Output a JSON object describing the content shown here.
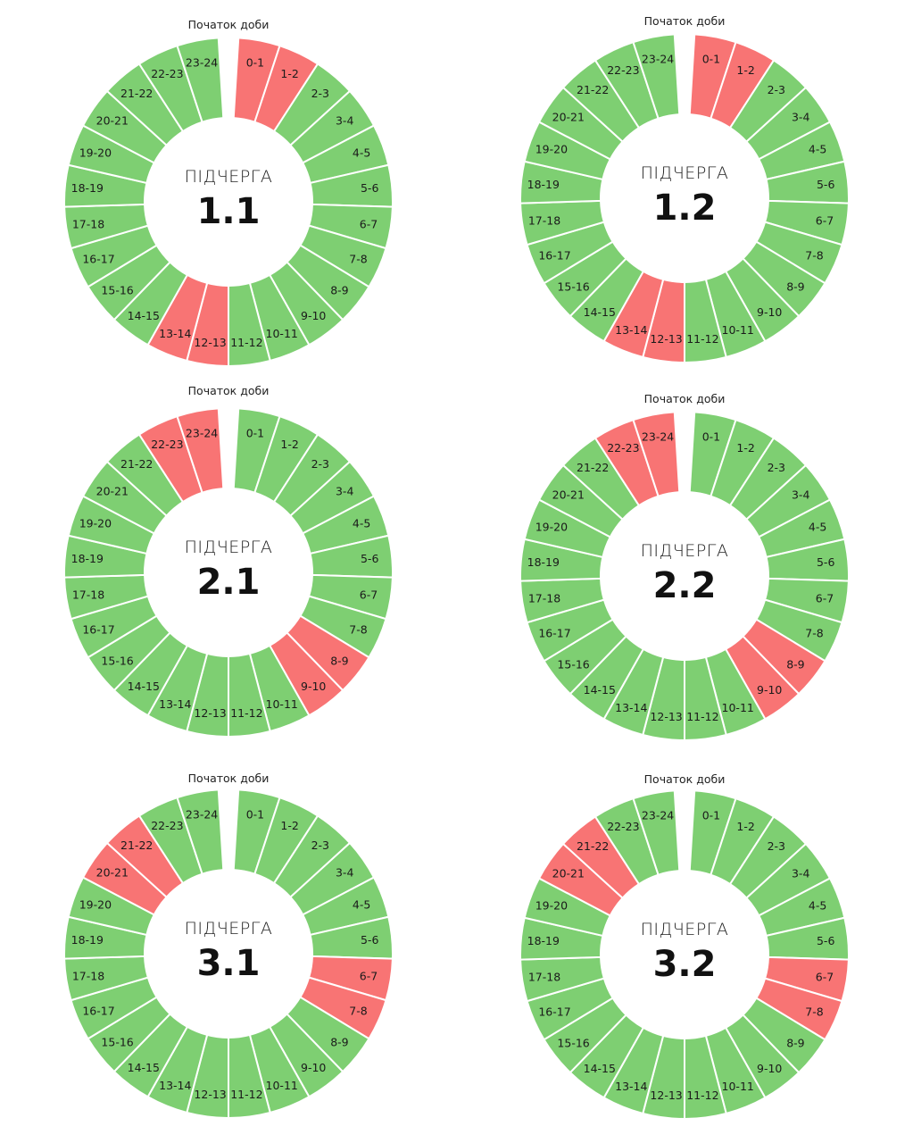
{
  "colors": {
    "on": "#7ecf72",
    "off": "#f87474",
    "divider": "#ffffff"
  },
  "chart_data": [
    {
      "type": "pie",
      "caption": "Початок доби",
      "center_title": "ПІДЧЕРГА",
      "center_number": "1.1",
      "categories": [
        "0-1",
        "1-2",
        "2-3",
        "3-4",
        "4-5",
        "5-6",
        "6-7",
        "7-8",
        "8-9",
        "9-10",
        "10-11",
        "11-12",
        "12-13",
        "13-14",
        "14-15",
        "15-16",
        "16-17",
        "17-18",
        "18-19",
        "19-20",
        "20-21",
        "21-22",
        "22-23",
        "23-24"
      ],
      "off": [
        "0-1",
        "1-2",
        "12-13",
        "13-14"
      ]
    },
    {
      "type": "pie",
      "caption": "Початок доби",
      "center_title": "ПІДЧЕРГА",
      "center_number": "1.2",
      "categories": [
        "0-1",
        "1-2",
        "2-3",
        "3-4",
        "4-5",
        "5-6",
        "6-7",
        "7-8",
        "8-9",
        "9-10",
        "10-11",
        "11-12",
        "12-13",
        "13-14",
        "14-15",
        "15-16",
        "16-17",
        "17-18",
        "18-19",
        "19-20",
        "20-21",
        "21-22",
        "22-23",
        "23-24"
      ],
      "off": [
        "0-1",
        "1-2",
        "12-13",
        "13-14"
      ]
    },
    {
      "type": "pie",
      "caption": "Початок доби",
      "center_title": "ПІДЧЕРГА",
      "center_number": "2.1",
      "categories": [
        "0-1",
        "1-2",
        "2-3",
        "3-4",
        "4-5",
        "5-6",
        "6-7",
        "7-8",
        "8-9",
        "9-10",
        "10-11",
        "11-12",
        "12-13",
        "13-14",
        "14-15",
        "15-16",
        "16-17",
        "17-18",
        "18-19",
        "19-20",
        "20-21",
        "21-22",
        "22-23",
        "23-24"
      ],
      "off": [
        "8-9",
        "9-10",
        "22-23",
        "23-24"
      ]
    },
    {
      "type": "pie",
      "caption": "Початок доби",
      "center_title": "ПІДЧЕРГА",
      "center_number": "2.2",
      "categories": [
        "0-1",
        "1-2",
        "2-3",
        "3-4",
        "4-5",
        "5-6",
        "6-7",
        "7-8",
        "8-9",
        "9-10",
        "10-11",
        "11-12",
        "12-13",
        "13-14",
        "14-15",
        "15-16",
        "16-17",
        "17-18",
        "18-19",
        "19-20",
        "20-21",
        "21-22",
        "22-23",
        "23-24"
      ],
      "off": [
        "8-9",
        "9-10",
        "22-23",
        "23-24"
      ]
    },
    {
      "type": "pie",
      "caption": "Початок доби",
      "center_title": "ПІДЧЕРГА",
      "center_number": "3.1",
      "categories": [
        "0-1",
        "1-2",
        "2-3",
        "3-4",
        "4-5",
        "5-6",
        "6-7",
        "7-8",
        "8-9",
        "9-10",
        "10-11",
        "11-12",
        "12-13",
        "13-14",
        "14-15",
        "15-16",
        "16-17",
        "17-18",
        "18-19",
        "19-20",
        "20-21",
        "21-22",
        "22-23",
        "23-24"
      ],
      "off": [
        "6-7",
        "7-8",
        "20-21",
        "21-22"
      ]
    },
    {
      "type": "pie",
      "caption": "Початок доби",
      "center_title": "ПІДЧЕРГА",
      "center_number": "3.2",
      "categories": [
        "0-1",
        "1-2",
        "2-3",
        "3-4",
        "4-5",
        "5-6",
        "6-7",
        "7-8",
        "8-9",
        "9-10",
        "10-11",
        "11-12",
        "12-13",
        "13-14",
        "14-15",
        "15-16",
        "16-17",
        "17-18",
        "18-19",
        "19-20",
        "20-21",
        "21-22",
        "22-23",
        "23-24"
      ],
      "off": [
        "6-7",
        "7-8",
        "20-21",
        "21-22"
      ]
    }
  ]
}
